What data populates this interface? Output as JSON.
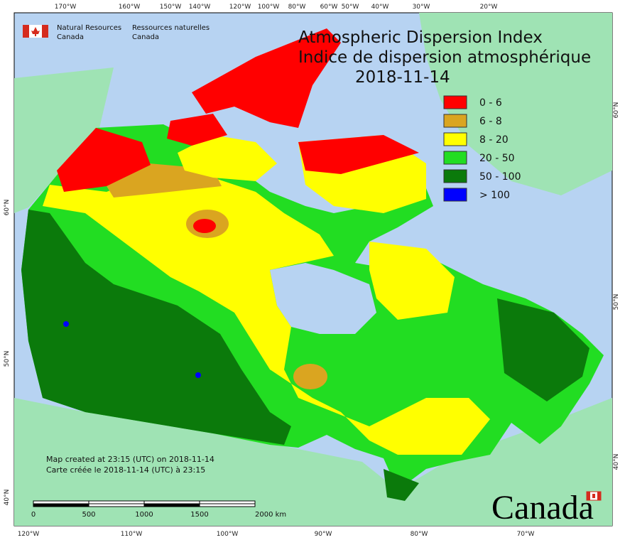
{
  "header": {
    "title_en": "Atmospheric Dispersion Index",
    "title_fr": "Indice de dispersion atmosphérique",
    "date": "2018-11-14"
  },
  "agency": {
    "en_line1": "Natural Resources",
    "en_line2": "Canada",
    "fr_line1": "Ressources naturelles",
    "fr_line2": "Canada"
  },
  "legend": [
    {
      "label": "0 - 6",
      "color": "#ff0000"
    },
    {
      "label": "6 - 8",
      "color": "#daa520"
    },
    {
      "label": "8 - 20",
      "color": "#ffff00"
    },
    {
      "label": "20 - 50",
      "color": "#22dd22"
    },
    {
      "label": "50 - 100",
      "color": "#0b7a0b"
    },
    {
      "label": "> 100",
      "color": "#0000ff"
    }
  ],
  "graticule": {
    "top": [
      "170°W",
      "160°W",
      "150°W",
      "140°W",
      "120°W",
      "100°W",
      "80°W",
      "60°W",
      "50°W",
      "40°W",
      "30°W",
      "20°W"
    ],
    "bottom": [
      "120°W",
      "110°W",
      "100°W",
      "90°W",
      "80°W",
      "70°W"
    ],
    "left": [
      "60°N",
      "50°N",
      "40°N"
    ],
    "right": [
      "60°N",
      "50°N",
      "40°N"
    ]
  },
  "notes": [
    "Map created at 23:15 (UTC) on 2018-11-14",
    "Carte créée le 2018-11-14 (UTC) à 23:15"
  ],
  "scale_bar": [
    "0",
    "500",
    "1000",
    "1500",
    "2000 km"
  ],
  "wordmark": "Canada"
}
